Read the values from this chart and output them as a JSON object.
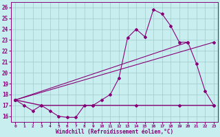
{
  "xlabel": "Windchill (Refroidissement éolien,°C)",
  "background_color": "#c8eef0",
  "grid_color": "#a0cccc",
  "line_color": "#880077",
  "xlim": [
    -0.5,
    23.5
  ],
  "ylim": [
    15.5,
    26.5
  ],
  "xticks": [
    0,
    1,
    2,
    3,
    4,
    5,
    6,
    7,
    8,
    9,
    10,
    11,
    12,
    13,
    14,
    15,
    16,
    17,
    18,
    19,
    20,
    21,
    22,
    23
  ],
  "yticks": [
    16,
    17,
    18,
    19,
    20,
    21,
    22,
    23,
    24,
    25,
    26
  ],
  "line1_x": [
    0,
    1,
    2,
    3,
    4,
    5,
    6,
    7,
    8,
    9,
    10,
    11,
    12,
    13,
    14,
    15,
    16,
    17,
    18,
    19,
    20,
    21,
    22,
    23
  ],
  "line1_y": [
    17.5,
    17.0,
    16.5,
    17.0,
    16.5,
    16.0,
    15.9,
    15.9,
    17.0,
    17.0,
    17.5,
    18.0,
    19.5,
    23.2,
    24.0,
    23.3,
    25.8,
    25.4,
    24.3,
    22.8,
    22.8,
    20.8,
    18.3,
    17.0
  ],
  "line2_x": [
    0,
    3,
    9,
    14,
    19,
    23
  ],
  "line2_y": [
    17.5,
    17.0,
    17.0,
    17.0,
    17.0,
    17.0
  ],
  "line3_x": [
    0,
    23
  ],
  "line3_y": [
    17.5,
    22.8
  ],
  "line4_x": [
    0,
    20
  ],
  "line4_y": [
    17.5,
    22.8
  ]
}
